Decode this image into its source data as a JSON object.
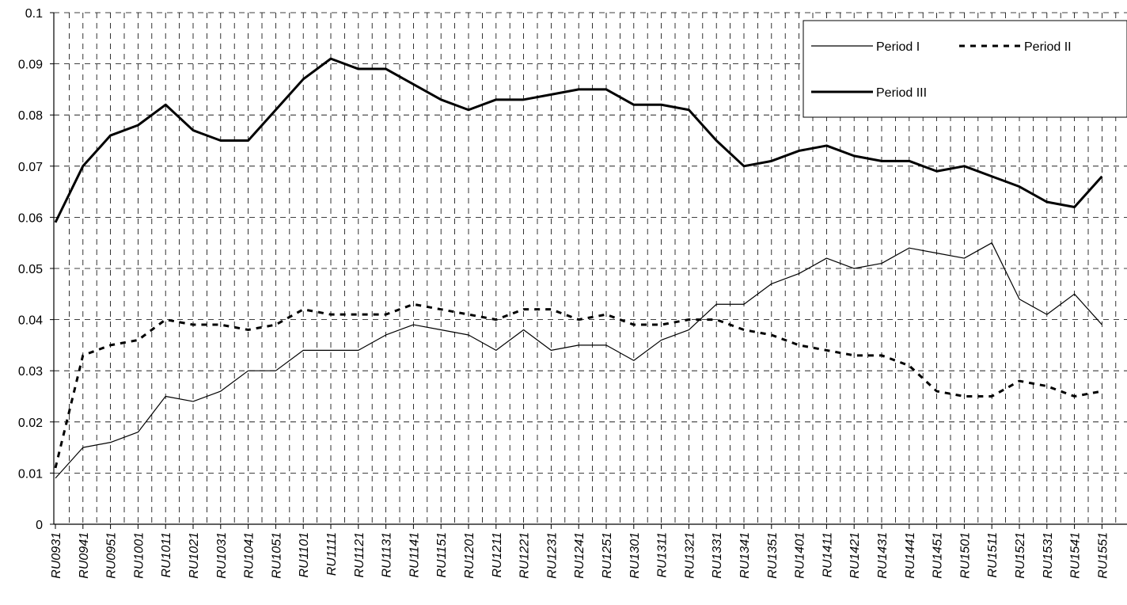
{
  "chart_data": {
    "type": "line",
    "categories": [
      "RU0931",
      "RU0941",
      "RU0951",
      "RU1001",
      "RU1011",
      "RU1021",
      "RU1031",
      "RU1041",
      "RU1051",
      "RU1101",
      "RU1111",
      "RU1121",
      "RU1131",
      "RU1141",
      "RU1151",
      "RU1201",
      "RU1211",
      "RU1221",
      "RU1231",
      "RU1241",
      "RU1251",
      "RU1301",
      "RU1311",
      "RU1321",
      "RU1331",
      "RU1341",
      "RU1351",
      "RU1401",
      "RU1411",
      "RU1421",
      "RU1431",
      "RU1441",
      "RU1451",
      "RU1501",
      "RU1511",
      "RU1521",
      "RU1531",
      "RU1541",
      "RU1551"
    ],
    "series": [
      {
        "name": "Period I",
        "color": "#000000",
        "style": "thin",
        "values": [
          0.009,
          0.015,
          0.016,
          0.018,
          0.025,
          0.024,
          0.026,
          0.03,
          0.03,
          0.034,
          0.034,
          0.034,
          0.037,
          0.039,
          0.038,
          0.037,
          0.034,
          0.038,
          0.034,
          0.035,
          0.035,
          0.032,
          0.036,
          0.038,
          0.043,
          0.043,
          0.047,
          0.049,
          0.052,
          0.05,
          0.051,
          0.054,
          0.053,
          0.052,
          0.055,
          0.044,
          0.041,
          0.045,
          0.039
        ]
      },
      {
        "name": "Period II",
        "color": "#000000",
        "style": "dashed",
        "values": [
          0.011,
          0.033,
          0.035,
          0.036,
          0.04,
          0.039,
          0.039,
          0.038,
          0.039,
          0.042,
          0.041,
          0.041,
          0.041,
          0.043,
          0.042,
          0.041,
          0.04,
          0.042,
          0.042,
          0.04,
          0.041,
          0.039,
          0.039,
          0.04,
          0.04,
          0.038,
          0.037,
          0.035,
          0.034,
          0.033,
          0.033,
          0.031,
          0.026,
          0.025,
          0.025,
          0.028,
          0.027,
          0.025,
          0.026
        ]
      },
      {
        "name": "Period III",
        "color": "#000000",
        "style": "thick",
        "values": [
          0.059,
          0.07,
          0.076,
          0.078,
          0.082,
          0.077,
          0.075,
          0.075,
          0.081,
          0.087,
          0.091,
          0.089,
          0.089,
          0.086,
          0.083,
          0.081,
          0.083,
          0.083,
          0.084,
          0.085,
          0.085,
          0.082,
          0.082,
          0.081,
          0.075,
          0.07,
          0.071,
          0.073,
          0.074,
          0.072,
          0.071,
          0.071,
          0.069,
          0.07,
          0.068,
          0.066,
          0.063,
          0.062,
          0.068
        ]
      }
    ],
    "ylim": [
      0,
      0.1
    ],
    "yticks": [
      0,
      0.01,
      0.02,
      0.03,
      0.04,
      0.05,
      0.06,
      0.07,
      0.08,
      0.09,
      0.1
    ],
    "grid": true,
    "legend": "top-right"
  }
}
